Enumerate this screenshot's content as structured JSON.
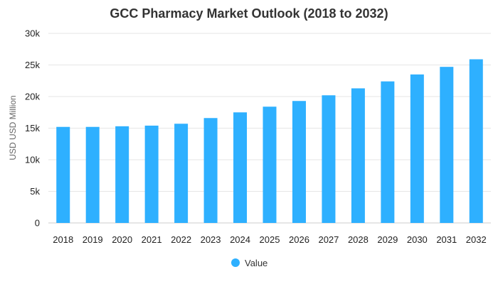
{
  "chart_data": {
    "type": "bar",
    "title": "GCC Pharmacy Market Outlook (2018 to 2032)",
    "xlabel": "",
    "ylabel": "USD USD Million",
    "categories": [
      "2018",
      "2019",
      "2020",
      "2021",
      "2022",
      "2023",
      "2024",
      "2025",
      "2026",
      "2027",
      "2028",
      "2029",
      "2030",
      "2031",
      "2032"
    ],
    "series": [
      {
        "name": "Value",
        "color": "#2eb0ff",
        "values": [
          15200,
          15200,
          15300,
          15400,
          15700,
          16600,
          17500,
          18400,
          19300,
          20200,
          21300,
          22400,
          23500,
          24700,
          25900
        ]
      }
    ],
    "ylim": [
      0,
      30000
    ],
    "yticks": [
      0,
      5000,
      10000,
      15000,
      20000,
      25000,
      30000
    ],
    "ytick_labels": [
      "0",
      "5k",
      "10k",
      "15k",
      "20k",
      "25k",
      "30k"
    ],
    "grid": true,
    "legend_position": "bottom-center"
  }
}
